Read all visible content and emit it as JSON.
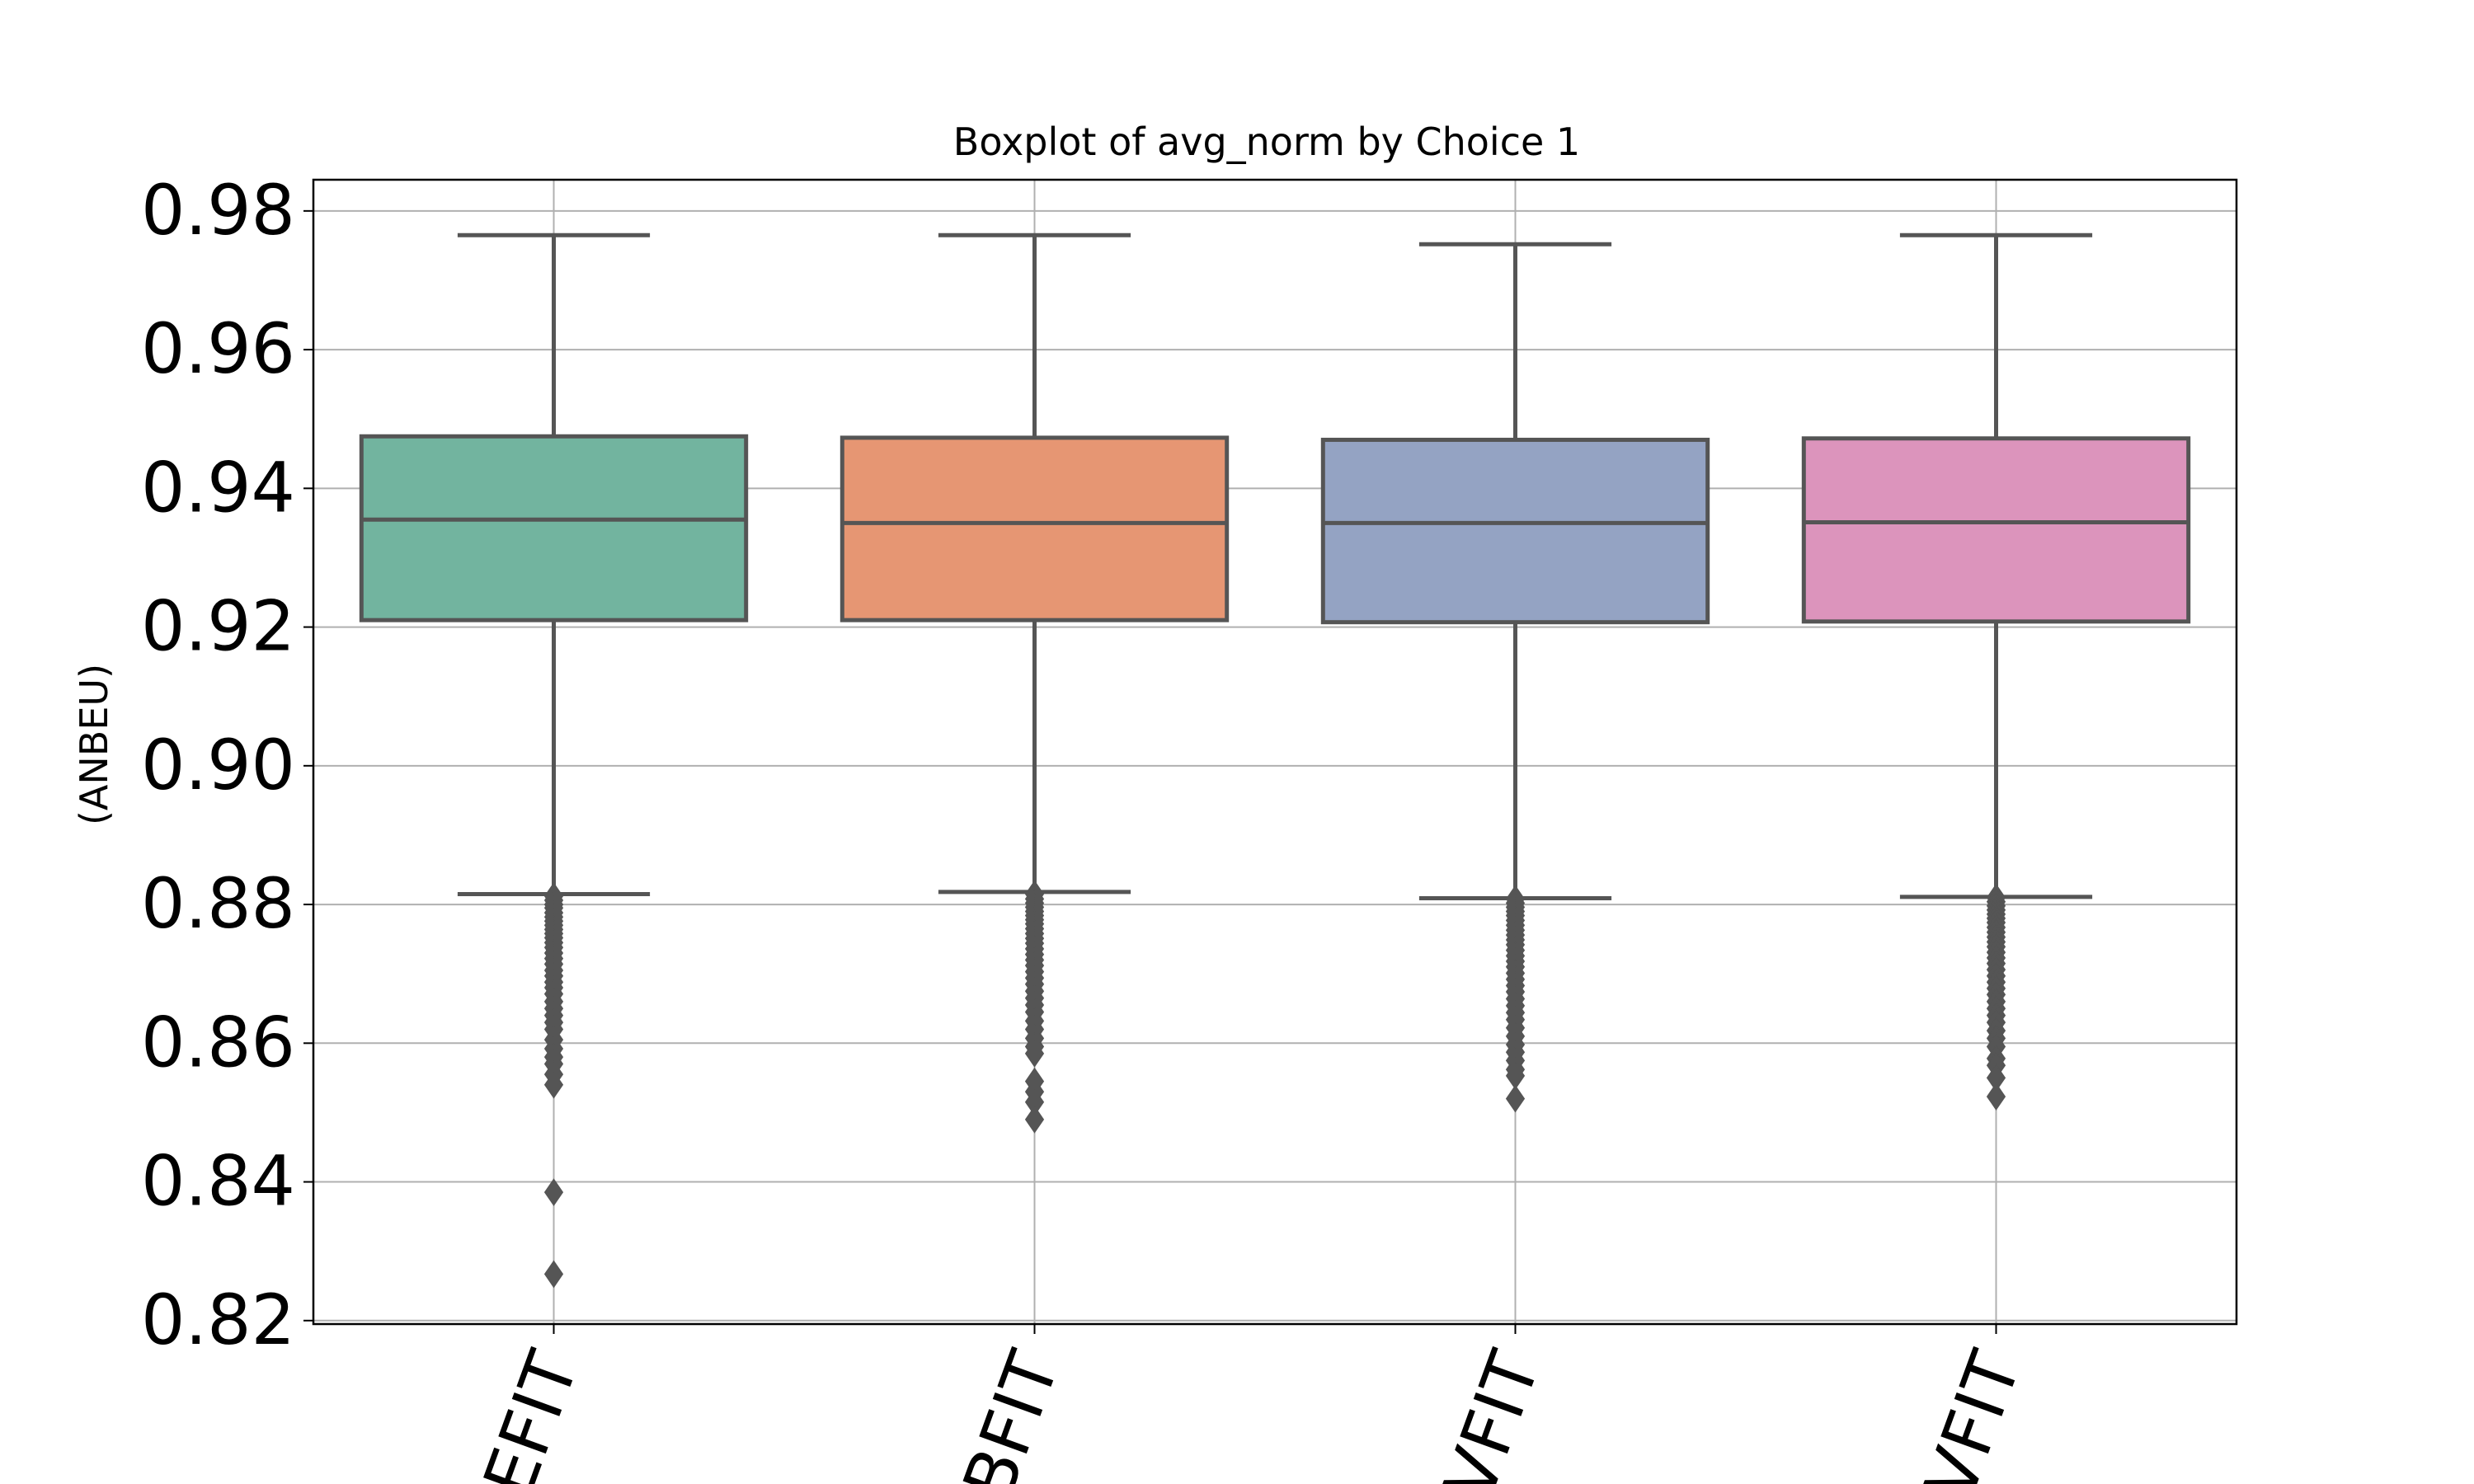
{
  "chart_data": {
    "type": "box",
    "title": "Boxplot of avg_norm by Choice 1",
    "xlabel": "",
    "ylabel": "(ANBEU)",
    "ylim": [
      0.8195,
      0.9845
    ],
    "yticks": [
      0.82,
      0.84,
      0.86,
      0.88,
      0.9,
      0.92,
      0.94,
      0.96,
      0.98
    ],
    "ytick_labels": [
      "0.82",
      "0.84",
      "0.86",
      "0.88",
      "0.90",
      "0.92",
      "0.94",
      "0.96",
      "0.98"
    ],
    "categories": [
      "EFIT",
      "BFIT",
      "VFIT",
      "VFIT"
    ],
    "grid": true,
    "series": [
      {
        "color": "#72b49f",
        "whisker_low": 0.8815,
        "q1": 0.921,
        "median": 0.9355,
        "q3": 0.9475,
        "whisker_high": 0.9765,
        "outliers": [
          0.8812,
          0.8806,
          0.88,
          0.8795,
          0.8788,
          0.8782,
          0.8776,
          0.877,
          0.8764,
          0.8758,
          0.8752,
          0.8745,
          0.8738,
          0.873,
          0.8722,
          0.8714,
          0.8705,
          0.8697,
          0.8688,
          0.868,
          0.8671,
          0.866,
          0.865,
          0.864,
          0.863,
          0.862,
          0.8605,
          0.8592,
          0.858,
          0.857,
          0.8555,
          0.854,
          0.8385,
          0.8267
        ]
      },
      {
        "color": "#e69673",
        "whisker_low": 0.8818,
        "q1": 0.921,
        "median": 0.935,
        "q3": 0.9473,
        "whisker_high": 0.9765,
        "outliers": [
          0.8815,
          0.8808,
          0.8802,
          0.8796,
          0.879,
          0.8784,
          0.8778,
          0.8772,
          0.8765,
          0.8758,
          0.8751,
          0.8744,
          0.8736,
          0.8728,
          0.872,
          0.8712,
          0.8703,
          0.8694,
          0.8685,
          0.8675,
          0.8665,
          0.8655,
          0.8645,
          0.8632,
          0.862,
          0.8607,
          0.8595,
          0.8585,
          0.8545,
          0.853,
          0.8515,
          0.849
        ]
      },
      {
        "color": "#94a3c3",
        "whisker_low": 0.8809,
        "q1": 0.9207,
        "median": 0.935,
        "q3": 0.947,
        "whisker_high": 0.9752,
        "outliers": [
          0.8808,
          0.8802,
          0.8796,
          0.879,
          0.8784,
          0.8777,
          0.877,
          0.8763,
          0.8756,
          0.8749,
          0.8742,
          0.8734,
          0.8726,
          0.8718,
          0.871,
          0.8701,
          0.8692,
          0.8683,
          0.8674,
          0.8664,
          0.8654,
          0.8644,
          0.8634,
          0.8622,
          0.861,
          0.8598,
          0.8587,
          0.8575,
          0.8562,
          0.8553,
          0.852
        ]
      },
      {
        "color": "#dc94bc",
        "whisker_low": 0.8811,
        "q1": 0.9208,
        "median": 0.9351,
        "q3": 0.9472,
        "whisker_high": 0.9765,
        "outliers": [
          0.881,
          0.8804,
          0.8798,
          0.8792,
          0.8786,
          0.878,
          0.8774,
          0.8767,
          0.876,
          0.8753,
          0.8746,
          0.8739,
          0.8731,
          0.8723,
          0.8715,
          0.8706,
          0.8697,
          0.8688,
          0.8679,
          0.867,
          0.866,
          0.865,
          0.864,
          0.863,
          0.8618,
          0.8607,
          0.8595,
          0.8578,
          0.8568,
          0.855,
          0.8523
        ]
      }
    ]
  }
}
